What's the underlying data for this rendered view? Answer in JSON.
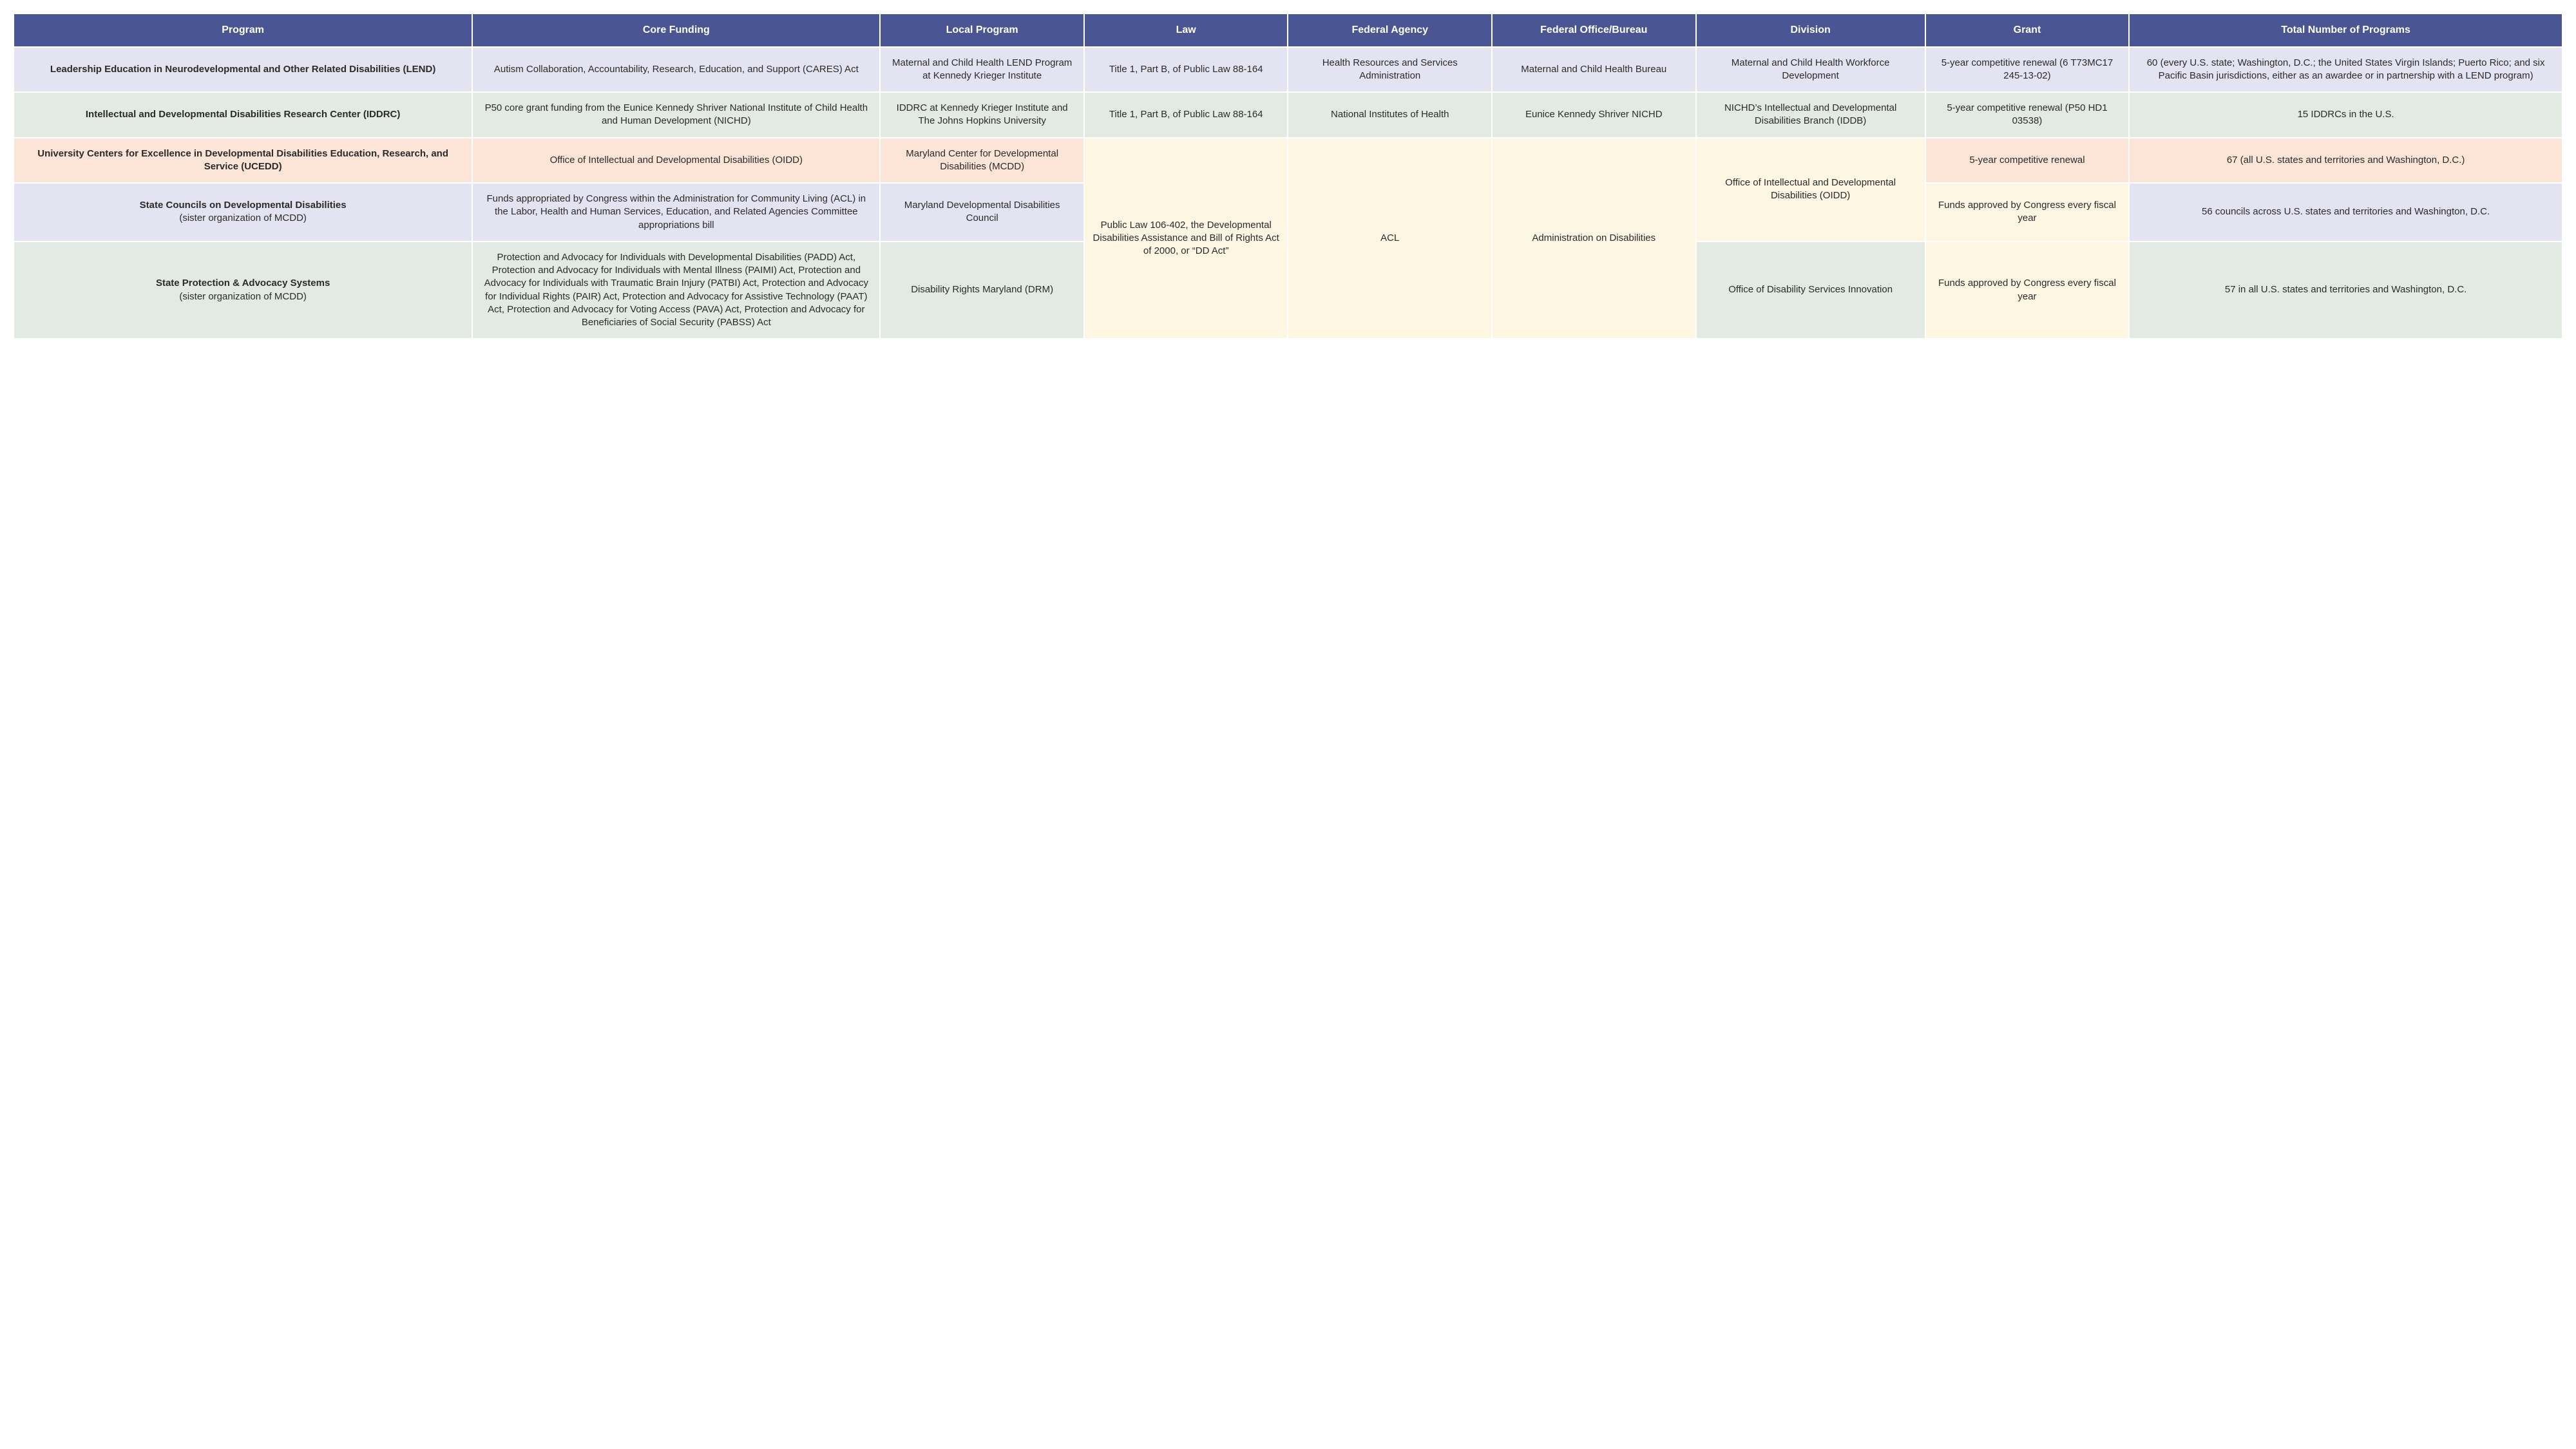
{
  "columns": [
    "Program",
    "Core Funding",
    "Local Program",
    "Law",
    "Federal Agency",
    "Federal Office/Bureau",
    "Division",
    "Grant",
    "Total Number of Programs"
  ],
  "mergedCells": {
    "law_3to5": "Public Law 106-402, the Developmental Disabilities Assistance and Bill of Rights Act of 2000, or “DD Act”",
    "agency_3to5": "ACL",
    "bureau_3to5": "Administration on Disabilities",
    "division_3to4": "Office of Intellectual and Developmental Disabilities (OIDD)"
  },
  "rows": [
    {
      "rowClass": "row-lavender",
      "program_main": "Leadership Education in Neurodevelopmental and Other Related Disabilities (LEND)",
      "program_sub": "",
      "core_funding": "Autism Collaboration, Accountability, Research, Education, and Support (CARES) Act",
      "local_program": "Maternal and Child Health LEND Program at Kennedy Krieger Institute",
      "law": "Title 1, Part B, of Public Law 88-164",
      "federal_agency": "Health Resources and Services Administration",
      "federal_bureau": "Maternal and Child Health Bureau",
      "division": "Maternal and Child Health Workforce Development",
      "grant": "5-year competitive renewal (6 T73MC17 245-13-02)",
      "total": "60 (every U.S. state; Washington, D.C.; the United States Virgin Islands; Puerto Rico; and six Pacific Basin jurisdictions, either as an awardee or in partnership with a LEND program)"
    },
    {
      "rowClass": "row-sage",
      "program_main": "Intellectual and Developmental Disabilities Research Center (IDDRC)",
      "program_sub": "",
      "core_funding": "P50 core grant funding from the Eunice Kennedy Shriver National Institute of Child Health and Human Development (NICHD)",
      "local_program": "IDDRC at Kennedy Krieger Institute and The Johns Hopkins University",
      "law": "Title 1, Part B, of Public Law 88-164",
      "federal_agency": "National Institutes of Health",
      "federal_bureau": "Eunice Kennedy Shriver NICHD",
      "division": "NICHD’s Intellectual and Developmental Disabilities Branch (IDDB)",
      "grant": "5-year competitive renewal (P50 HD1 03538)",
      "total": "15 IDDRCs in the U.S."
    },
    {
      "rowClass": "row-peach",
      "program_main": "University Centers for Excellence in Developmental Disabilities Education, Research, and Service (UCEDD)",
      "program_sub": "",
      "core_funding": "Office of Intellectual and Developmental Disabilities (OIDD)",
      "local_program": "Maryland Center for Developmental Disabilities (MCDD)",
      "grant": "5-year competitive renewal",
      "total": "67 (all U.S. states and territories and Washington, D.C.)"
    },
    {
      "rowClass": "row-lavender",
      "program_main": "State Councils on Developmental Disabilities",
      "program_sub": "(sister organization of MCDD)",
      "core_funding": "Funds appropriated by Congress within the Administration for Community Living (ACL) in the Labor, Health and Human Services, Education, and Related Agencies Committee appropriations bill",
      "local_program": "Maryland Developmental Disabilities Council",
      "grant": "Funds approved by Congress every fiscal year",
      "total": "56 councils across U.S. states and territories and Washington, D.C."
    },
    {
      "rowClass": "row-sage",
      "program_main": "State Protection & Advocacy Systems",
      "program_sub": "(sister organization of MCDD)",
      "core_funding": "Protection and Advocacy for Individuals with Developmental Disabilities (PADD) Act, Protection and Advocacy for Individuals with Mental Illness (PAIMI) Act, Protection and Advocacy for Individuals with Traumatic Brain Injury (PATBI) Act, Protection and Advocacy for Individual Rights (PAIR) Act, Protection and Advocacy for Assistive Technology (PAAT) Act, Protection and Advocacy for Voting Access (PAVA) Act, Protection and Advocacy for Beneficiaries of Social Security (PABSS) Act",
      "local_program": "Disability Rights Maryland (DRM)",
      "division": "Office of Disability Services Innovation",
      "grant": "Funds approved by Congress every fiscal year",
      "total": "57 in all U.S. states and territories and Washington, D.C."
    }
  ],
  "styling": {
    "header_bg": "#4a5593",
    "header_fg": "#ffffff",
    "row_colors": {
      "lavender": "#e4e3f1",
      "sage": "#e3e9e3",
      "peach": "#fce4d6",
      "cream": "#fdf6e3"
    },
    "border_color": "#ffffff",
    "font_size_body": 15,
    "font_size_header": 16
  }
}
